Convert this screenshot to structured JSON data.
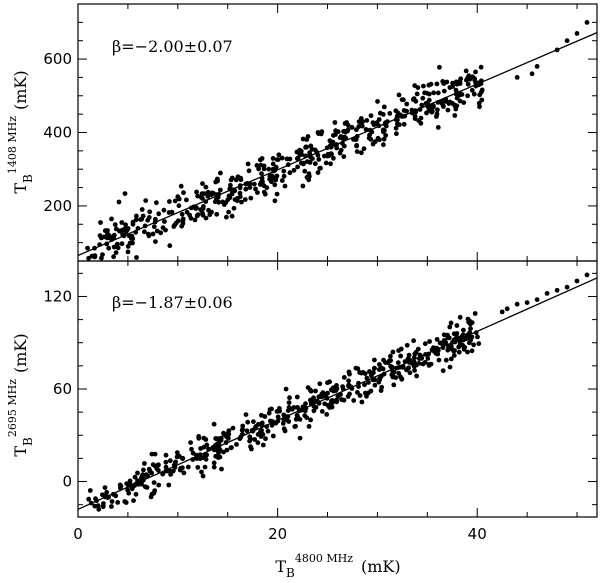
{
  "chart_data": [
    {
      "type": "scatter",
      "panel": "top",
      "ylabel_main": "T",
      "ylabel_sub": "B",
      "ylabel_sup": "1408 MHz",
      "ylabel_unit": "(mK)",
      "xlim": [
        0,
        52
      ],
      "ylim": [
        50,
        750
      ],
      "yticks": [
        200,
        400,
        600
      ],
      "annotation": "β=−2.00±0.07",
      "fit_line": {
        "x": [
          0,
          52
        ],
        "y": [
          65,
          672
        ]
      },
      "point_color": "#000000",
      "series": [
        {
          "name": "",
          "generator": {
            "seed": 11,
            "n": 520,
            "xmin": 0.6,
            "xmax": 40.5,
            "intercept": 65,
            "slope": 11.67,
            "noise": 32,
            "extra": [
              [
                44,
                550
              ],
              [
                46,
                580
              ],
              [
                48,
                625
              ],
              [
                49,
                650
              ],
              [
                50,
                670
              ],
              [
                51,
                700
              ],
              [
                52,
                725
              ],
              [
                52.5,
                745
              ],
              [
                53,
                690
              ],
              [
                45.5,
                560
              ]
            ]
          }
        }
      ]
    },
    {
      "type": "scatter",
      "panel": "bottom",
      "ylabel_main": "T",
      "ylabel_sub": "B",
      "ylabel_sup": "2695 MHz",
      "ylabel_unit": "(mK)",
      "xlabel_main": "T",
      "xlabel_sub": "B",
      "xlabel_sup": "4800 MHz",
      "xlabel_unit": "(mK)",
      "xlim": [
        0,
        52
      ],
      "ylim": [
        -23,
        143
      ],
      "xticks": [
        0,
        20,
        40
      ],
      "yticks": [
        0,
        60,
        120
      ],
      "annotation": "β=−1.87±0.06",
      "fit_line": {
        "x": [
          0,
          52
        ],
        "y": [
          -18,
          132
        ]
      },
      "point_color": "#000000",
      "series": [
        {
          "name": "",
          "generator": {
            "seed": 29,
            "n": 520,
            "xmin": 0.6,
            "xmax": 40.5,
            "intercept": -18,
            "slope": 2.885,
            "noise": 6,
            "extra": [
              [
                43,
                112
              ],
              [
                44,
                115
              ],
              [
                46,
                118
              ],
              [
                47,
                122
              ],
              [
                48,
                124
              ],
              [
                49,
                126
              ],
              [
                50,
                130
              ],
              [
                51,
                134
              ],
              [
                52,
                138
              ],
              [
                53,
                141
              ],
              [
                45,
                116
              ],
              [
                42.5,
                110
              ]
            ]
          }
        }
      ]
    }
  ]
}
